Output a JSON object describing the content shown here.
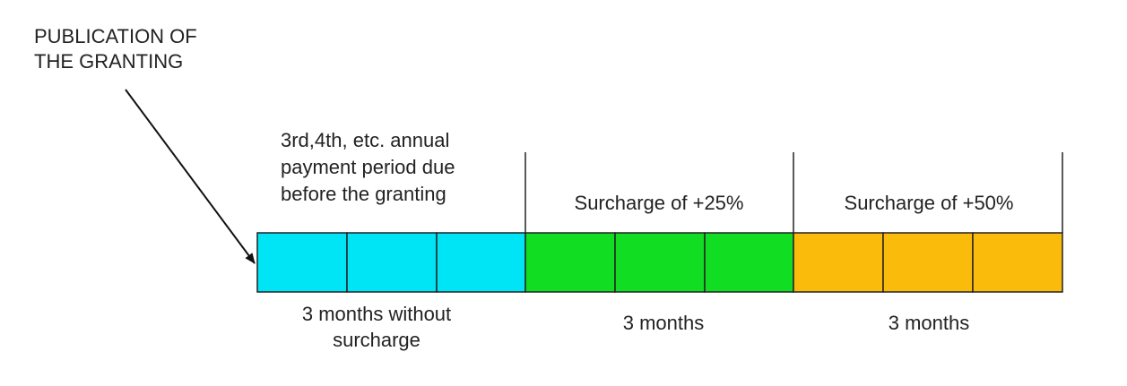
{
  "annotation": {
    "lines": [
      "PUBLICATION OF",
      "THE GRANTING"
    ]
  },
  "segments": [
    {
      "top_lines": [
        "3rd,4th, etc. annual",
        "payment period due",
        "before the granting"
      ],
      "bottom_lines": [
        "3 months without",
        "surcharge"
      ]
    },
    {
      "top_lines": [
        "Surcharge of +25%"
      ],
      "bottom_lines": [
        "3 months"
      ]
    },
    {
      "top_lines": [
        "Surcharge of +50%"
      ],
      "bottom_lines": [
        "3 months"
      ]
    }
  ]
}
